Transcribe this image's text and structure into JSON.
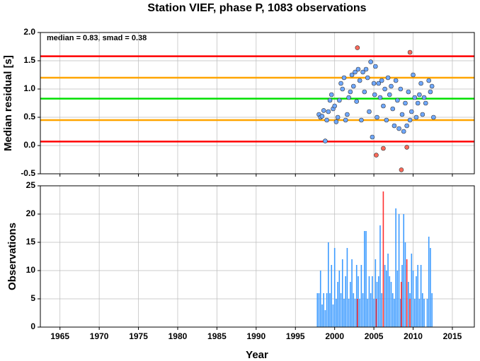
{
  "chart_data": [
    {
      "type": "scatter",
      "title": "Station VIEF, phase P, 1083 observations",
      "annotation": "median = 0.83, smad = 0.38",
      "y_label": "Median residual [s]",
      "xlim": [
        1962.5,
        2017.8
      ],
      "ylim": [
        -0.5,
        2.0
      ],
      "yticks": [
        -0.5,
        {
          "value": 0,
          "label": "0.0"
        },
        0.5,
        {
          "value": 1,
          "label": "1.0"
        },
        1.5,
        {
          "value": 2,
          "label": "2.0"
        }
      ],
      "grid": true,
      "hlines": [
        {
          "value": 1.58,
          "color": "#ff0000"
        },
        {
          "value": 1.2,
          "color": "#ffa500"
        },
        {
          "value": 0.83,
          "color": "#00e000"
        },
        {
          "value": 0.45,
          "color": "#ffa500"
        },
        {
          "value": 0.07,
          "color": "#ff0000"
        }
      ],
      "series": [
        {
          "color": "#6fa8ff",
          "x": [
            1998.0,
            1998.2,
            1998.4,
            1998.6,
            1998.8,
            1999.0,
            1999.2,
            1999.4,
            1999.6,
            1999.8,
            2000.0,
            2000.2,
            2000.4,
            2000.6,
            2000.8,
            2001.0,
            2001.2,
            2001.4,
            2001.6,
            2001.8,
            2002.0,
            2002.2,
            2002.4,
            2002.6,
            2002.8,
            2003.0,
            2003.2,
            2003.4,
            2003.6,
            2003.8,
            2004.0,
            2004.2,
            2004.4,
            2004.6,
            2004.8,
            2005.0,
            2005.1,
            2005.2,
            2005.4,
            2005.6,
            2005.8,
            2006.0,
            2006.2,
            2006.4,
            2006.6,
            2006.8,
            2007.0,
            2007.2,
            2007.4,
            2007.6,
            2007.8,
            2008.0,
            2008.2,
            2008.4,
            2008.6,
            2008.8,
            2009.0,
            2009.2,
            2009.4,
            2009.6,
            2009.8,
            2010.0,
            2010.2,
            2010.4,
            2010.6,
            2010.8,
            2011.0,
            2011.2,
            2011.4,
            2011.6,
            2012.0,
            2012.2,
            2012.4,
            2012.6
          ],
          "values": [
            0.55,
            0.5,
            0.52,
            0.62,
            0.08,
            0.45,
            0.6,
            0.8,
            0.9,
            0.65,
            0.7,
            0.42,
            0.5,
            0.8,
            1.1,
            1.0,
            1.2,
            0.45,
            0.55,
            0.85,
            0.95,
            1.25,
            1.05,
            1.3,
            0.78,
            1.35,
            1.15,
            0.45,
            1.3,
            0.95,
            1.35,
            1.2,
            0.6,
            1.48,
            0.15,
            1.1,
            0.9,
            1.4,
            0.5,
            1.1,
            0.85,
            1.15,
            0.7,
            1.0,
            0.45,
            1.2,
            0.9,
            1.05,
            0.65,
            0.35,
            1.15,
            0.8,
            0.3,
            1.0,
            0.55,
            0.25,
            0.75,
            0.35,
            0.95,
            0.45,
            0.6,
            1.25,
            0.85,
            0.5,
            0.75,
            0.9,
            1.1,
            0.55,
            0.85,
            0.75,
            1.15,
            0.95,
            1.05,
            0.5
          ]
        },
        {
          "color": "#ff6a5a",
          "x": [
            2002.9,
            2009.6,
            2005.3,
            2006.2,
            2009.2,
            2008.5
          ],
          "values": [
            1.73,
            1.65,
            -0.17,
            -0.05,
            -0.03,
            -0.43
          ]
        }
      ]
    },
    {
      "type": "bar",
      "x_label": "Year",
      "y_label": "Observations",
      "xlim": [
        1962.5,
        2017.8
      ],
      "ylim": [
        0,
        25
      ],
      "xticks": [
        1965,
        1970,
        1975,
        1980,
        1985,
        1990,
        1995,
        2000,
        2005,
        2010,
        2015
      ],
      "yticks": [
        0,
        5,
        10,
        15,
        20,
        25
      ],
      "grid": true,
      "series": [
        {
          "color": "#3d9bff",
          "x": [
            1997.8,
            1998.0,
            1998.2,
            1998.4,
            1998.6,
            1998.8,
            1999.0,
            1999.2,
            1999.4,
            1999.6,
            1999.8,
            2000.0,
            2000.2,
            2000.4,
            2000.6,
            2000.8,
            2001.0,
            2001.2,
            2001.4,
            2001.6,
            2001.8,
            2002.0,
            2002.2,
            2002.4,
            2002.6,
            2002.8,
            2003.0,
            2003.2,
            2003.4,
            2003.6,
            2003.8,
            2004.0,
            2004.2,
            2004.4,
            2004.6,
            2004.8,
            2005.0,
            2005.2,
            2005.4,
            2005.6,
            2005.8,
            2006.0,
            2006.4,
            2006.6,
            2006.8,
            2007.0,
            2007.2,
            2007.4,
            2007.6,
            2007.8,
            2008.0,
            2008.2,
            2008.4,
            2008.6,
            2008.8,
            2009.0,
            2009.2,
            2009.4,
            2009.6,
            2009.8,
            2010.0,
            2010.2,
            2010.4,
            2010.6,
            2010.8,
            2011.0,
            2011.2,
            2011.4,
            2011.8,
            2012.0,
            2012.2,
            2012.4
          ],
          "values": [
            6,
            6,
            10,
            4,
            6,
            3,
            6,
            15,
            6,
            11,
            4,
            14,
            5,
            8,
            10,
            6,
            12,
            5,
            9,
            14,
            5,
            8,
            12,
            6,
            5,
            11,
            9,
            5,
            11,
            6,
            17,
            17,
            5,
            9,
            6,
            9,
            5,
            12,
            8,
            9,
            18,
            6,
            11,
            10,
            13,
            9,
            8,
            6,
            5,
            21,
            10,
            20,
            5,
            11,
            20,
            15,
            11,
            8,
            6,
            13,
            10,
            5,
            9,
            11,
            5,
            11,
            6,
            5,
            5,
            16,
            14,
            6
          ]
        },
        {
          "color": "#ff3030",
          "x": [
            2002.9,
            2005.3,
            2006.2,
            2008.5,
            2009.2,
            2009.6
          ],
          "values": [
            5,
            5,
            24,
            8,
            12,
            5
          ]
        }
      ]
    }
  ]
}
